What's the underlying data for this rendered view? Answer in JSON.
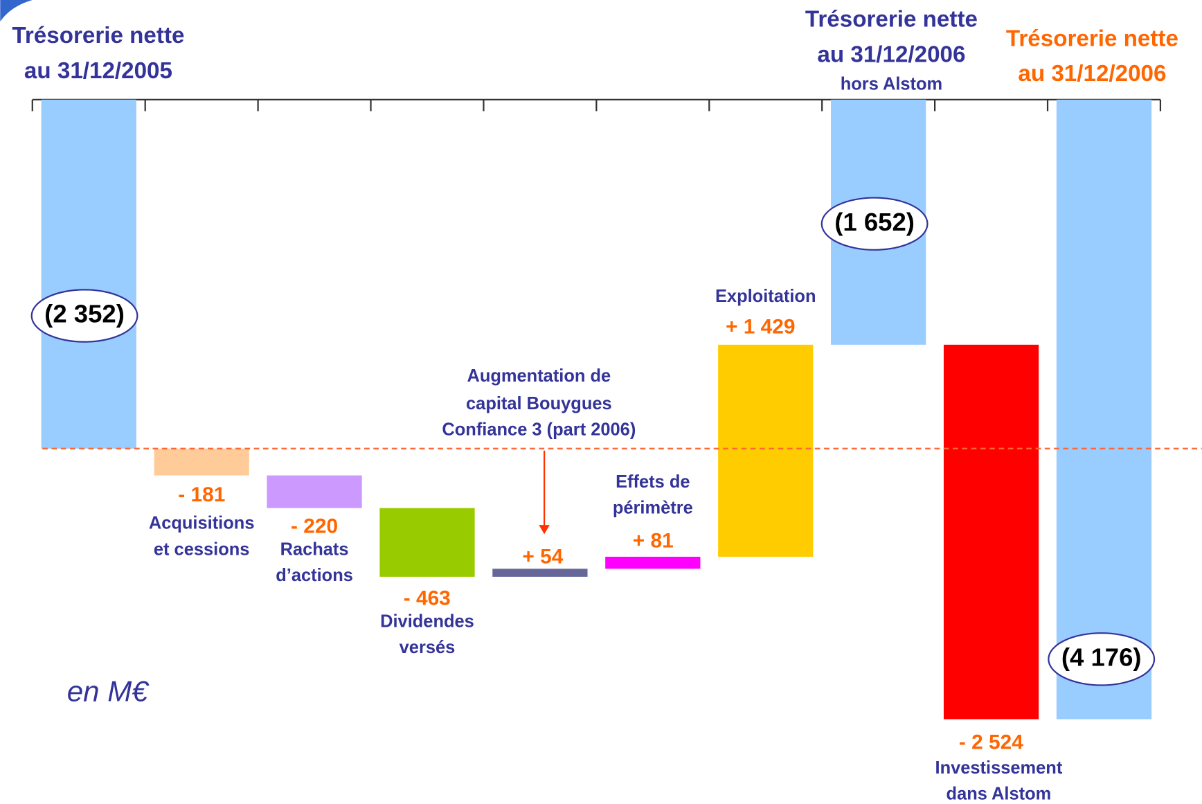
{
  "chart_data": {
    "type": "waterfall",
    "categories": [
      [
        "Trésorerie nette",
        "au 31/12/2005"
      ],
      [
        "Acquisitions",
        "et cessions"
      ],
      [
        "Rachats",
        "d’actions"
      ],
      [
        "Dividendes",
        "versés"
      ],
      [
        "Augmentation de",
        "capital Bouygues",
        "Confiance 3 (part 2006)"
      ],
      [
        "Effets de",
        "périmètre"
      ],
      [
        "Exploitation"
      ],
      [
        "Trésorerie nette",
        "au 31/12/2006",
        "hors Alstom"
      ],
      [
        "Investissement",
        "dans Alstom"
      ],
      [
        "Trésorerie nette",
        "au 31/12/2006"
      ]
    ],
    "measures": [
      "absolute",
      "relative",
      "relative",
      "relative",
      "relative",
      "relative",
      "relative",
      "absolute",
      "relative",
      "absolute"
    ],
    "values": [
      -2352,
      -181,
      -220,
      -463,
      54,
      81,
      1429,
      -1652,
      -2524,
      -4176
    ],
    "value_labels": [
      "(2 352)",
      "- 181",
      "- 220",
      "- 463",
      "+ 54",
      "+ 81",
      "+ 1 429",
      "(1 652)",
      "- 2 524",
      "(4 176)"
    ],
    "colors": [
      "#99ccff",
      "#ffcc99",
      "#cc99ff",
      "#99cc00",
      "#666699",
      "#ff00ff",
      "#ffcc00",
      "#99ccff",
      "#ff0000",
      "#99ccff"
    ],
    "ylim": [
      -4200,
      0
    ],
    "annotation": "en M€"
  }
}
